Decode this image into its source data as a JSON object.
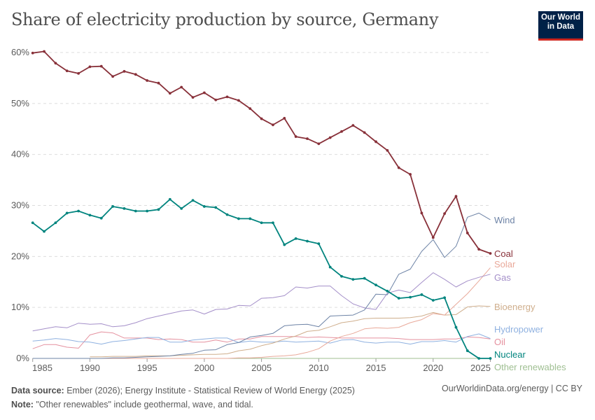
{
  "title": "Share of electricity production by source, Germany",
  "logo": {
    "line1": "Our World",
    "line2": "in Data"
  },
  "footer": {
    "source_label": "Data source:",
    "source_text": "Ember (2026); Energy Institute - Statistical Review of World Energy (2025)",
    "note_label": "Note:",
    "note_text": "\"Other renewables\" include geothermal, wave, and tidal.",
    "credit": "OurWorldinData.org/energy | CC BY"
  },
  "chart_data": {
    "type": "line",
    "title": "Share of electricity production by source, Germany",
    "x": [
      1985,
      1986,
      1987,
      1988,
      1989,
      1990,
      1991,
      1992,
      1993,
      1994,
      1995,
      1996,
      1997,
      1998,
      1999,
      2000,
      2001,
      2002,
      2003,
      2004,
      2005,
      2006,
      2007,
      2008,
      2009,
      2010,
      2011,
      2012,
      2013,
      2014,
      2015,
      2016,
      2017,
      2018,
      2019,
      2020,
      2021,
      2022,
      2023,
      2024,
      2025
    ],
    "xlim": [
      1985,
      2025
    ],
    "ylim": [
      0,
      60
    ],
    "x_ticks": [
      "1985",
      "1990",
      "1995",
      "2000",
      "2005",
      "2010",
      "2015",
      "2020",
      "2025"
    ],
    "y_ticks": [
      "0%",
      "10%",
      "20%",
      "30%",
      "40%",
      "50%",
      "60%"
    ],
    "grid": "horizontal dashed",
    "legend": "inline labels at right",
    "series": [
      {
        "name": "Wind",
        "color": "#6d83a6",
        "markers": false,
        "values": [
          0,
          0,
          0,
          0,
          0,
          0.0,
          0.0,
          0.1,
          0.1,
          0.2,
          0.3,
          0.4,
          0.5,
          0.8,
          1.0,
          1.6,
          1.7,
          2.7,
          3.1,
          4.2,
          4.5,
          4.9,
          6.4,
          6.6,
          6.7,
          6.2,
          8.3,
          8.4,
          8.5,
          9.5,
          12.6,
          12.5,
          16.5,
          17.5,
          21.0,
          23.3,
          19.8,
          22.0,
          27.7,
          28.5,
          27.2
        ]
      },
      {
        "name": "Coal",
        "color": "#883039",
        "markers": true,
        "values": [
          59.9,
          60.2,
          57.9,
          56.4,
          55.9,
          57.2,
          57.3,
          55.3,
          56.3,
          55.7,
          54.5,
          54.0,
          52.0,
          53.2,
          51.2,
          52.1,
          50.7,
          51.3,
          50.6,
          49.0,
          47.0,
          45.8,
          47.1,
          43.5,
          43.1,
          42.1,
          43.3,
          44.5,
          45.7,
          44.3,
          42.5,
          40.8,
          37.4,
          36.1,
          28.5,
          23.7,
          28.4,
          31.8,
          24.6,
          21.4,
          20.6
        ]
      },
      {
        "name": "Solar",
        "color": "#e9a99a",
        "markers": false,
        "values": [
          0,
          0,
          0,
          0,
          0,
          0,
          0,
          0,
          0,
          0,
          0,
          0,
          0,
          0,
          0,
          0,
          0,
          0,
          0.1,
          0.1,
          0.2,
          0.4,
          0.5,
          0.7,
          1.2,
          1.9,
          3.4,
          4.3,
          4.9,
          5.8,
          6.0,
          5.9,
          6.1,
          7.0,
          7.6,
          8.8,
          8.5,
          10.6,
          12.7,
          15.2,
          17.8
        ]
      },
      {
        "name": "Gas",
        "color": "#a48fc9",
        "markers": false,
        "values": [
          5.4,
          5.8,
          6.2,
          6.0,
          6.9,
          6.7,
          6.8,
          6.2,
          6.4,
          7.0,
          7.8,
          8.3,
          8.8,
          9.3,
          9.5,
          8.7,
          9.6,
          9.7,
          10.4,
          10.3,
          11.8,
          11.9,
          12.3,
          14.0,
          13.8,
          14.2,
          14.2,
          12.3,
          10.7,
          9.9,
          9.6,
          12.8,
          13.4,
          12.9,
          14.9,
          16.8,
          15.5,
          14.0,
          15.2,
          15.9,
          16.5
        ]
      },
      {
        "name": "Bioenergy",
        "color": "#cfae8c",
        "markers": false,
        "values": [
          null,
          null,
          null,
          null,
          null,
          0.3,
          0.3,
          0.4,
          0.4,
          0.4,
          0.5,
          0.5,
          0.5,
          0.6,
          0.7,
          0.8,
          0.8,
          0.9,
          1.5,
          1.8,
          2.5,
          3.0,
          3.8,
          4.4,
          5.3,
          5.5,
          6.2,
          7.0,
          7.3,
          7.8,
          7.9,
          7.9,
          7.9,
          8.0,
          8.3,
          9.0,
          8.5,
          8.6,
          10.1,
          10.3,
          10.2
        ]
      },
      {
        "name": "Hydropower",
        "color": "#8fb1e0",
        "markers": false,
        "values": [
          3.4,
          3.6,
          3.9,
          3.7,
          3.3,
          3.2,
          2.8,
          3.3,
          3.5,
          3.8,
          4.1,
          4.1,
          3.2,
          3.2,
          3.6,
          3.8,
          4.0,
          4.0,
          3.1,
          3.4,
          3.2,
          3.2,
          3.4,
          3.2,
          3.3,
          3.4,
          3.0,
          3.6,
          3.7,
          3.2,
          3.0,
          3.2,
          3.2,
          2.8,
          3.3,
          3.3,
          3.5,
          3.2,
          4.3,
          4.8,
          3.9
        ]
      },
      {
        "name": "Oil",
        "color": "#e5919f",
        "markers": false,
        "values": [
          1.9,
          2.7,
          2.7,
          2.2,
          2.0,
          4.6,
          5.2,
          5.0,
          4.0,
          4.0,
          4.0,
          3.7,
          3.8,
          3.7,
          3.2,
          3.2,
          3.6,
          3.2,
          3.8,
          3.8,
          4.3,
          4.3,
          4.3,
          4.3,
          4.1,
          4.2,
          4.1,
          4.0,
          4.0,
          4.0,
          4.0,
          4.0,
          3.9,
          3.7,
          3.7,
          3.7,
          3.8,
          3.8,
          4.2,
          4.1,
          3.8
        ]
      },
      {
        "name": "Nuclear",
        "color": "#00847e",
        "markers": true,
        "values": [
          26.6,
          24.9,
          26.6,
          28.5,
          28.9,
          28.1,
          27.5,
          29.8,
          29.4,
          28.9,
          28.9,
          29.2,
          31.2,
          29.4,
          31.0,
          29.8,
          29.6,
          28.2,
          27.4,
          27.4,
          26.6,
          26.6,
          22.3,
          23.5,
          23.0,
          22.5,
          17.9,
          16.1,
          15.5,
          15.7,
          14.4,
          13.2,
          11.8,
          12.0,
          12.5,
          11.4,
          11.9,
          6.1,
          1.5,
          0,
          0
        ]
      },
      {
        "name": "Other renewables",
        "color": "#9fbf92",
        "markers": false,
        "values": [
          0,
          0,
          0,
          0,
          0,
          0,
          0,
          0,
          0,
          0,
          0,
          0,
          0,
          0,
          0,
          0,
          0,
          0,
          0,
          0,
          0,
          0,
          0,
          0,
          0,
          0,
          0,
          0,
          0,
          0,
          0,
          0,
          0,
          0,
          0,
          0,
          0,
          0,
          0,
          0,
          0
        ]
      }
    ]
  }
}
